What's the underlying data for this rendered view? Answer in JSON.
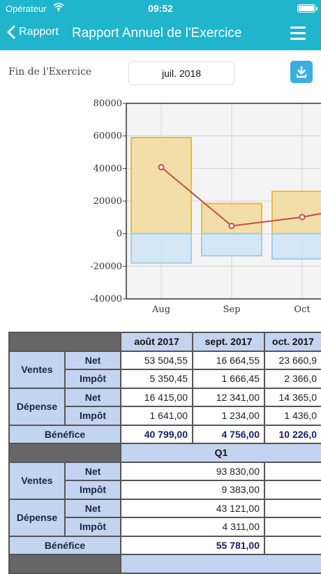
{
  "status_bar": {
    "carrier": "Opérateur",
    "time": "09:52"
  },
  "nav": {
    "back_label": "Rapport",
    "title": "Rapport Annuel de l'Exercice"
  },
  "period": {
    "label": "Fin de l'Exercice",
    "value": "juil. 2018"
  },
  "chart_data": {
    "type": "bar",
    "categories": [
      "Aug",
      "Sep",
      "Oct"
    ],
    "series": [
      {
        "values": [
          59000,
          18500,
          26000
        ],
        "color": "#f2dca0"
      },
      {
        "values": [
          -18000,
          -13500,
          -15500
        ],
        "color": "#cfe4f5"
      },
      {
        "type": "line",
        "values": [
          40800,
          4800,
          10200
        ],
        "color": "#c84a4a"
      }
    ],
    "y_ticks": [
      "80000",
      "60000",
      "40000",
      "20000",
      "0",
      "-20000",
      "-40000"
    ],
    "ylim": [
      -40000,
      80000
    ],
    "grid": true
  },
  "table": {
    "months": [
      "août 2017",
      "sept. 2017",
      "oct. 2017"
    ],
    "sales_label": "Ventes",
    "expense_label": "Dépense",
    "net_label": "Net",
    "tax_label": "Impôt",
    "profit_label": "Bénéfice",
    "sales_net": [
      "53 504,55",
      "16 664,55",
      "23 660,9"
    ],
    "sales_tax": [
      "5 350,45",
      "1 666,45",
      "2 366,0"
    ],
    "expense_net": [
      "16 415,00",
      "12 341,00",
      "14 365,0"
    ],
    "expense_tax": [
      "1 641,00",
      "1 234,00",
      "1 436,0"
    ],
    "profit": [
      "40 799,00",
      "4 756,00",
      "10 226,0"
    ],
    "quarter": {
      "label": "Q1",
      "sales_net": "93 830,00",
      "sales_tax": "9 383,00",
      "expense_net": "43 121,00",
      "expense_tax": "4 311,00",
      "profit": "55 781,00"
    }
  }
}
